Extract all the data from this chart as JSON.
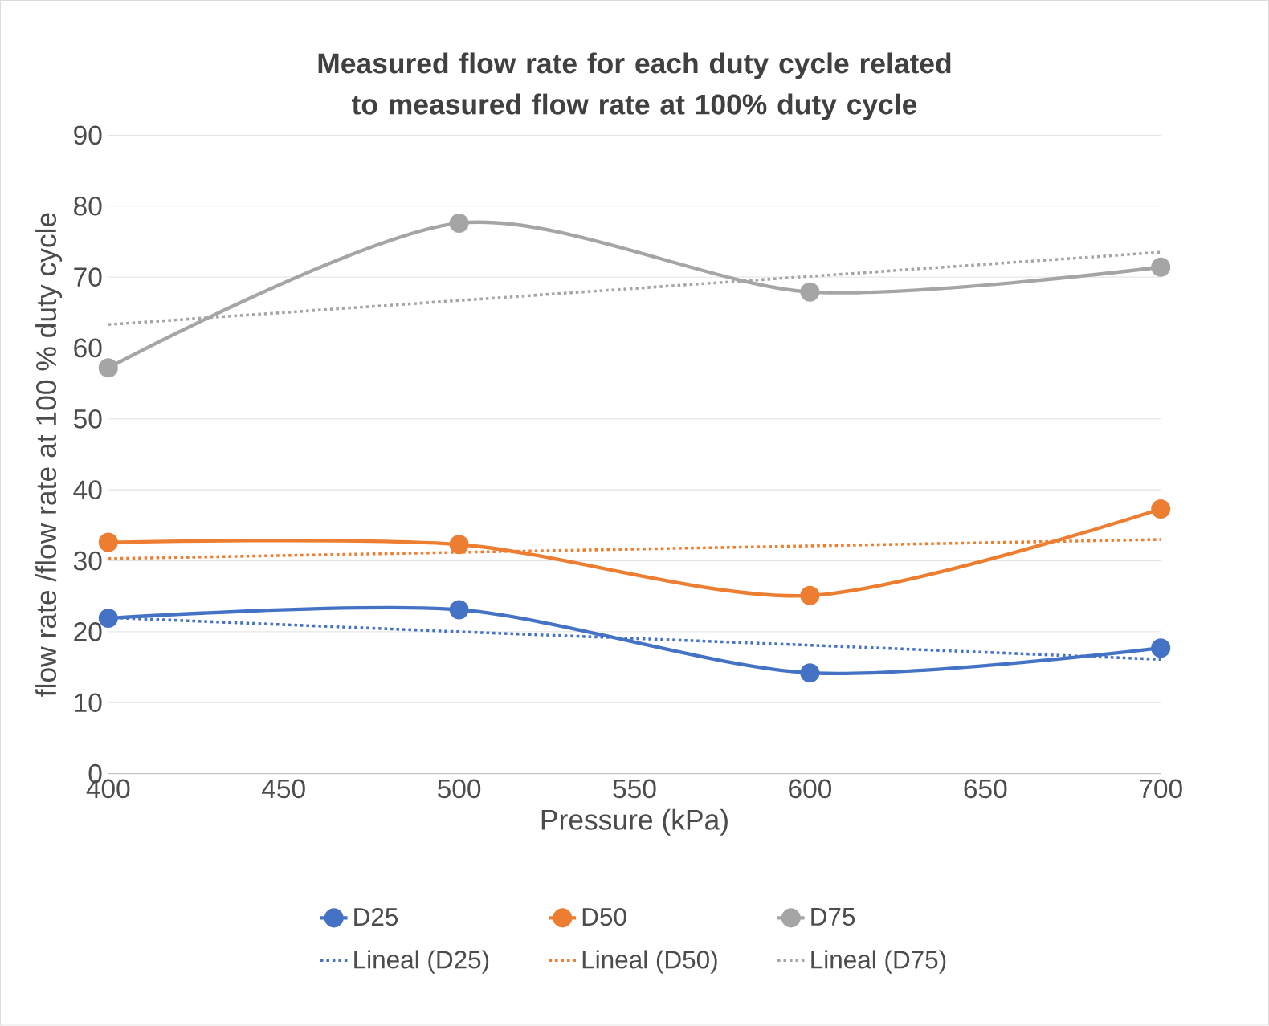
{
  "chart_data": {
    "type": "line",
    "title": "Measured flow rate for each duty cycle related to measured flow rate at 100% duty cycle",
    "xlabel": "Pressure (kPa)",
    "ylabel": "flow rate /flow rate at 100 % duty cycle",
    "x": [
      400,
      500,
      600,
      700
    ],
    "series": [
      {
        "name": "D25",
        "color": "#4472c4",
        "values": [
          21.9,
          23.1,
          14.2,
          17.7
        ]
      },
      {
        "name": "D50",
        "color": "#ed7d31",
        "values": [
          32.6,
          32.3,
          25.1,
          37.3
        ]
      },
      {
        "name": "D75",
        "color": "#a5a5a5",
        "values": [
          57.2,
          77.6,
          67.9,
          71.4
        ]
      },
      {
        "name": "Lineal (D25)",
        "color": "#4472c4",
        "values": [
          22.0,
          20.0,
          18.1,
          16.1
        ],
        "line_style": "dotted",
        "marker": "none"
      },
      {
        "name": "Lineal (D50)",
        "color": "#ed7d31",
        "values": [
          30.3,
          31.2,
          32.1,
          33.0
        ],
        "line_style": "dotted",
        "marker": "none"
      },
      {
        "name": "Lineal (D75)",
        "color": "#a5a5a5",
        "values": [
          63.3,
          66.7,
          70.1,
          73.5
        ],
        "line_style": "dotted",
        "marker": "none"
      }
    ],
    "xlim": [
      400,
      700
    ],
    "xticks": [
      400,
      450,
      500,
      550,
      600,
      650,
      700
    ],
    "ylim": [
      0,
      90
    ],
    "yticks": [
      0,
      10,
      20,
      30,
      40,
      50,
      60,
      70,
      80,
      90
    ],
    "grid": "y",
    "legend": "bottom",
    "marker": "circle",
    "line_style": "solid"
  }
}
